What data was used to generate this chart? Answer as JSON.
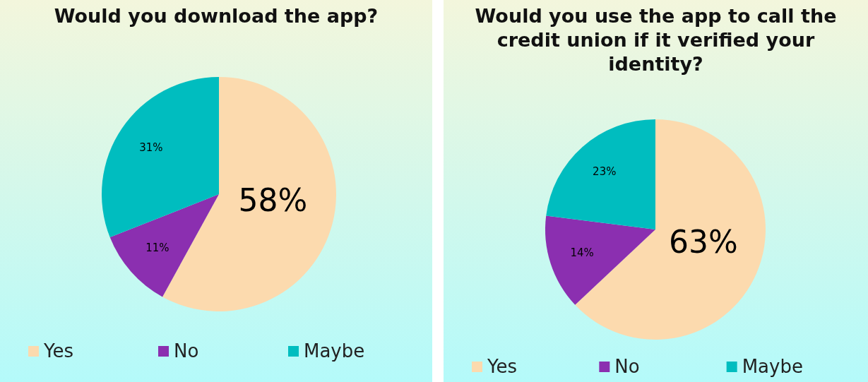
{
  "chart_data": [
    {
      "type": "pie",
      "title": "Would you download the app?",
      "categories": [
        "Yes",
        "No",
        "Maybe"
      ],
      "values": [
        58,
        11,
        31
      ],
      "value_labels": [
        "58%",
        "11%",
        "31%"
      ],
      "colors": [
        "#fcdaae",
        "#8b2fb0",
        "#00bdbf"
      ],
      "legend": "bottom"
    },
    {
      "type": "pie",
      "title": "Would you use the app to call the credit union if it verified your identity?",
      "categories": [
        "Yes",
        "No",
        "Maybe"
      ],
      "values": [
        63,
        14,
        23
      ],
      "value_labels": [
        "63%",
        "14%",
        "23%"
      ],
      "colors": [
        "#fcdaae",
        "#8b2fb0",
        "#00bdbf"
      ],
      "legend": "bottom"
    }
  ]
}
